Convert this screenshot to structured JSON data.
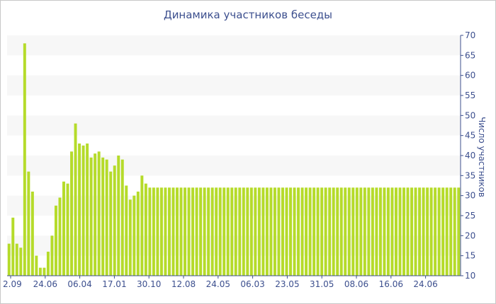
{
  "chart_data": {
    "type": "bar",
    "title": "Динамика участников беседы",
    "ylabel": "Число участников",
    "xlabel": "",
    "ylim": [
      10,
      70
    ],
    "y_ticks": [
      10,
      15,
      20,
      25,
      30,
      35,
      40,
      45,
      50,
      55,
      60,
      65,
      70
    ],
    "x_tick_labels": [
      "2.09",
      "24.06",
      "06.04",
      "17.01",
      "30.10",
      "12.08",
      "24.05",
      "06.03",
      "23.05",
      "31.05",
      "08.06",
      "16.06",
      "24.06"
    ],
    "grid": "horizontal alternating bands",
    "bar_color": "#b5db2a",
    "band_color": "#f7f7f7",
    "text_color": "#3c4f8e",
    "values": [
      18,
      24.5,
      18,
      17,
      68,
      36,
      31,
      15,
      12,
      12,
      16,
      20,
      27.5,
      29.5,
      33.5,
      33,
      41,
      48,
      43,
      42.5,
      43,
      39.5,
      40.5,
      41,
      39.5,
      39,
      36,
      37.5,
      40,
      39,
      32.5,
      29,
      30,
      31,
      35,
      33,
      32,
      32,
      32,
      32,
      32,
      32,
      32,
      32,
      32,
      32,
      32,
      32,
      32,
      32,
      32,
      32,
      32,
      32,
      32,
      32,
      32,
      32,
      32,
      32,
      32,
      32,
      32,
      32,
      32,
      32,
      32,
      32,
      32,
      32,
      32,
      32,
      32,
      32,
      32,
      32,
      32,
      32,
      32,
      32,
      32,
      32,
      32,
      32,
      32,
      32,
      32,
      32,
      32,
      32,
      32,
      32,
      32,
      32,
      32,
      32,
      32,
      32,
      32,
      32,
      32,
      32,
      32,
      32,
      32,
      32,
      32,
      32,
      32,
      32,
      32,
      32,
      32,
      32,
      32,
      32
    ]
  }
}
